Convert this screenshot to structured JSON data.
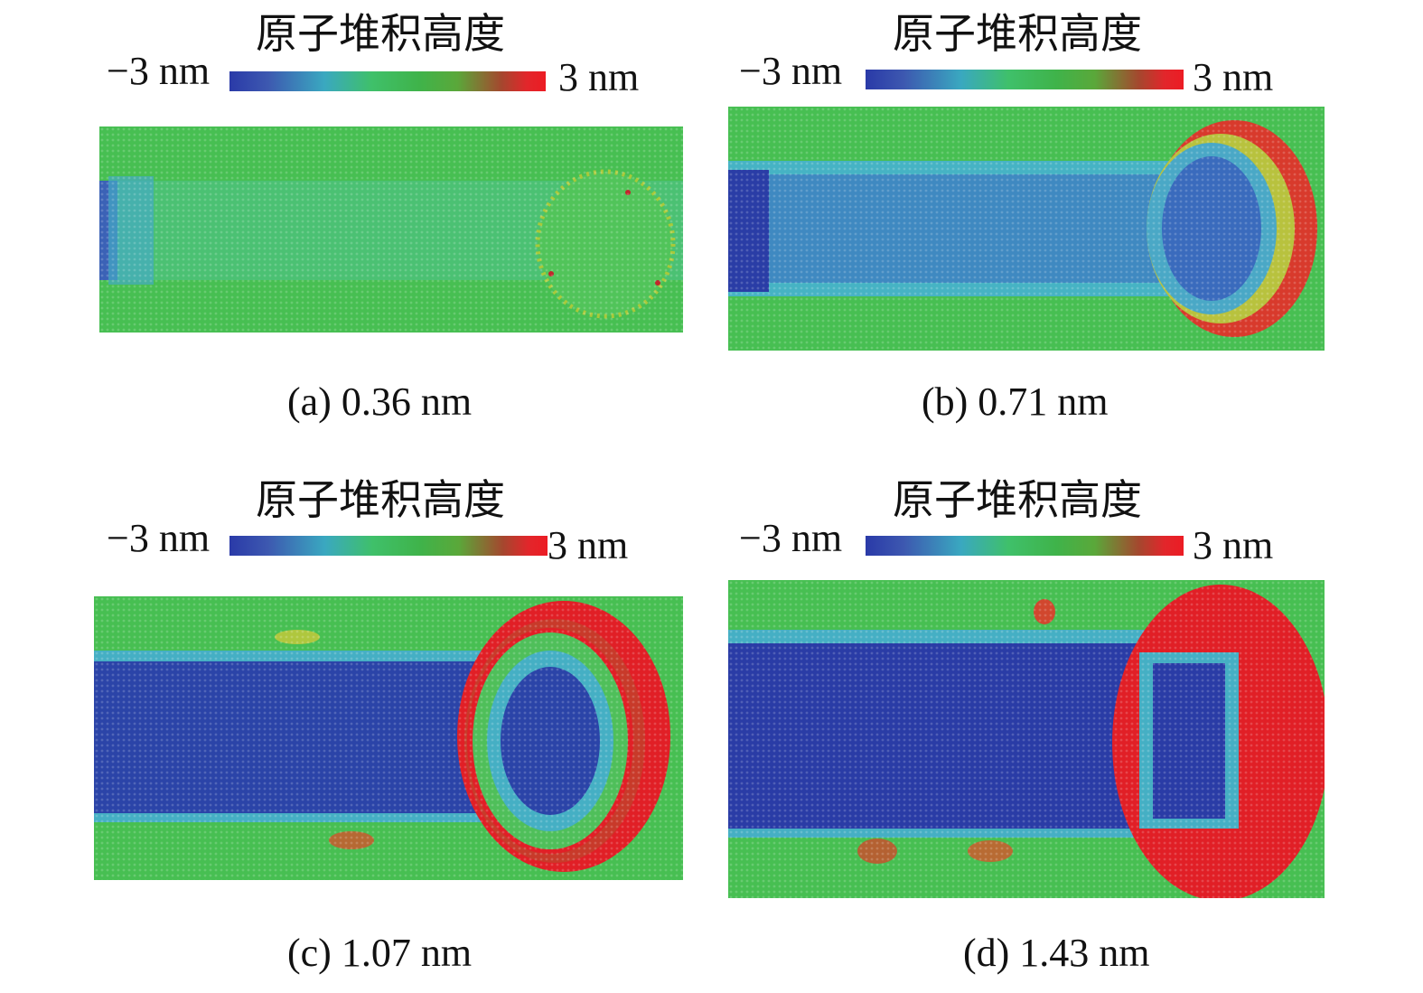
{
  "colorbar": {
    "title": "原子堆积高度",
    "min_label": "−3 nm",
    "max_label": "3 nm",
    "colors": [
      "#2b3aa6",
      "#40c060",
      "#ec1c24"
    ]
  },
  "panels": [
    {
      "caption": "(a) 0.36 nm"
    },
    {
      "caption": "(b) 0.71 nm"
    },
    {
      "caption": "(c) 1.07 nm"
    },
    {
      "caption": "(d) 1.43 nm"
    }
  ],
  "palette": {
    "green": "#45bd4e",
    "cyan": "#44b8c4",
    "blue": "#2740a6",
    "red": "#e11f26",
    "yellow": "#c9c93a"
  }
}
